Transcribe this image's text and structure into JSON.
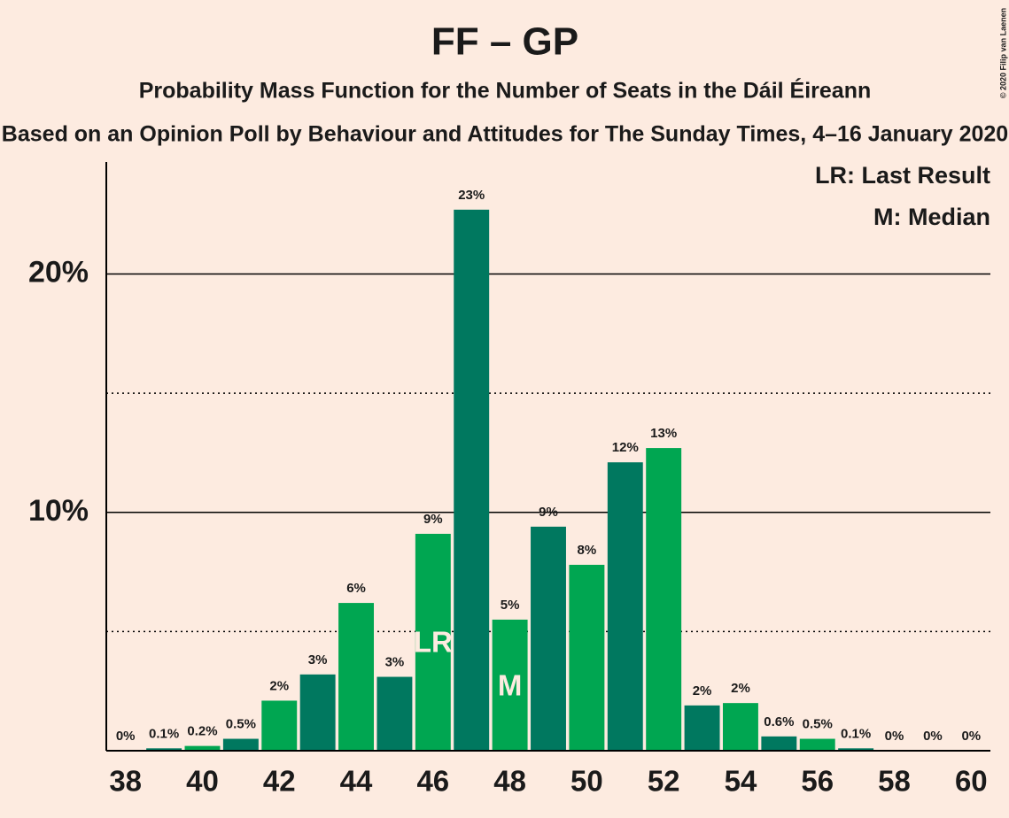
{
  "chart_data": {
    "type": "bar",
    "title": "FF – GP",
    "subtitle": "Probability Mass Function for the Number of Seats in the Dáil Éireann",
    "subtitle2": "Based on an Opinion Poll by Behaviour and Attitudes for The Sunday Times, 4–16 January 2020",
    "copyright": "© 2020 Filip van Laenen",
    "x": [
      38,
      39,
      40,
      41,
      42,
      43,
      44,
      45,
      46,
      47,
      48,
      49,
      50,
      51,
      52,
      53,
      54,
      55,
      56,
      57,
      58,
      59,
      60
    ],
    "values": [
      0,
      0.1,
      0.2,
      0.5,
      2.1,
      3.2,
      6.2,
      3.1,
      9.1,
      22.7,
      5.5,
      9.4,
      7.8,
      12.1,
      12.7,
      1.9,
      2.0,
      0.6,
      0.5,
      0.1,
      0,
      0,
      0
    ],
    "value_labels": [
      "0%",
      "0.1%",
      "0.2%",
      "0.5%",
      "2%",
      "3%",
      "6%",
      "3%",
      "9%",
      "23%",
      "5%",
      "9%",
      "8%",
      "12%",
      "13%",
      "2%",
      "2%",
      "0.6%",
      "0.5%",
      "0.1%",
      "0%",
      "0%",
      "0%"
    ],
    "colors": [
      "#00a651",
      "#00785f",
      "#00a651",
      "#00785f",
      "#00a651",
      "#00785f",
      "#00a651",
      "#00785f",
      "#00a651",
      "#00785f",
      "#00a651",
      "#00785f",
      "#00a651",
      "#00785f",
      "#00a651",
      "#00785f",
      "#00a651",
      "#00785f",
      "#00a651",
      "#00785f",
      "#00a651",
      "#00785f",
      "#00a651"
    ],
    "bar_annotations": [
      null,
      null,
      null,
      null,
      null,
      null,
      null,
      null,
      "LR",
      null,
      "M",
      null,
      null,
      null,
      null,
      null,
      null,
      null,
      null,
      null,
      null,
      null,
      null
    ],
    "legend": [
      "LR: Last Result",
      "M: Median"
    ],
    "xlim": [
      37.5,
      60.5
    ],
    "xticks": [
      38,
      40,
      42,
      44,
      46,
      48,
      50,
      52,
      54,
      56,
      58,
      60
    ],
    "ylim": [
      0,
      24.7
    ],
    "yticks": [
      {
        "value": 10,
        "label": "10%"
      },
      {
        "value": 20,
        "label": "20%"
      }
    ],
    "yminor_grid": [
      5,
      15
    ],
    "grid": true
  }
}
